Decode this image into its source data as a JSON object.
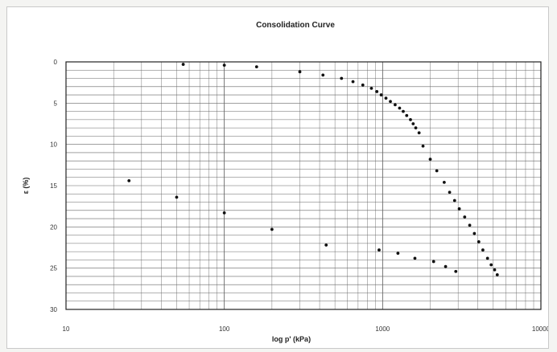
{
  "chart_data": {
    "type": "scatter",
    "title": "Consolidation Curve",
    "xlabel": "log p' (kPa)",
    "ylabel": "ε (%)",
    "x_scale": "log",
    "xlim": [
      10,
      10000
    ],
    "ylim": [
      0,
      30
    ],
    "y_inverted": true,
    "x_ticks": [
      "10",
      "100",
      "1000",
      "10000"
    ],
    "y_ticks": [
      "0",
      "5",
      "10",
      "15",
      "20",
      "25",
      "30"
    ],
    "grid": true,
    "point_color": "#111111",
    "series": [
      {
        "points": [
          [
            55,
            0.3
          ],
          [
            100,
            0.4
          ],
          [
            160,
            0.6
          ],
          [
            300,
            1.2
          ],
          [
            420,
            1.6
          ],
          [
            550,
            2.0
          ],
          [
            650,
            2.4
          ],
          [
            750,
            2.8
          ],
          [
            850,
            3.2
          ],
          [
            920,
            3.6
          ],
          [
            980,
            4.0
          ],
          [
            1050,
            4.4
          ],
          [
            1120,
            4.8
          ],
          [
            1200,
            5.2
          ],
          [
            1280,
            5.6
          ],
          [
            1350,
            6.0
          ],
          [
            1420,
            6.5
          ],
          [
            1500,
            7.0
          ],
          [
            1560,
            7.5
          ],
          [
            1620,
            8.0
          ],
          [
            1700,
            8.6
          ],
          [
            1800,
            10.2
          ],
          [
            2000,
            11.8
          ],
          [
            2200,
            13.2
          ],
          [
            2450,
            14.6
          ],
          [
            2650,
            15.8
          ],
          [
            2850,
            16.8
          ],
          [
            3050,
            17.8
          ],
          [
            3300,
            18.8
          ],
          [
            3550,
            19.8
          ],
          [
            3800,
            20.8
          ],
          [
            4050,
            21.8
          ],
          [
            4300,
            22.8
          ],
          [
            4600,
            23.8
          ],
          [
            4850,
            24.6
          ],
          [
            5100,
            25.2
          ],
          [
            5300,
            25.8
          ],
          [
            2900,
            25.4
          ],
          [
            2500,
            24.8
          ],
          [
            2100,
            24.2
          ],
          [
            1600,
            23.8
          ],
          [
            1250,
            23.2
          ],
          [
            950,
            22.8
          ],
          [
            440,
            22.2
          ],
          [
            200,
            20.3
          ],
          [
            100,
            18.3
          ],
          [
            50,
            16.4
          ],
          [
            25,
            14.4
          ]
        ]
      }
    ]
  }
}
